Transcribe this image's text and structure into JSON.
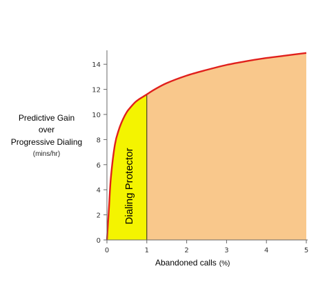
{
  "chart_data": {
    "type": "area",
    "title": "",
    "ylabel": {
      "line1": "Predictive Gain",
      "line2": "over",
      "line3": "Progressive Dialing",
      "units": "(mins/hr)"
    },
    "xlabel": "Abandoned calls",
    "xlabel_units": "(%)",
    "xlim": [
      0,
      5
    ],
    "ylim": [
      0,
      15
    ],
    "xticks": [
      0,
      1,
      2,
      3,
      4,
      5
    ],
    "yticks": [
      0,
      2,
      4,
      6,
      8,
      10,
      12,
      14
    ],
    "grid": false,
    "curve": {
      "x": [
        0,
        0.05,
        0.1,
        0.2,
        0.3,
        0.4,
        0.5,
        0.6,
        0.7,
        0.8,
        0.9,
        1.0,
        1.2,
        1.5,
        2.0,
        2.5,
        3.0,
        3.5,
        4.0,
        4.5,
        5.0
      ],
      "y": [
        0,
        2.5,
        5.0,
        7.6,
        8.8,
        9.6,
        10.2,
        10.6,
        10.95,
        11.2,
        11.4,
        11.6,
        12.0,
        12.5,
        13.1,
        13.55,
        13.95,
        14.25,
        14.5,
        14.7,
        14.9
      ]
    },
    "regions": [
      {
        "label": "Dialing Protector",
        "x_from": 0,
        "x_to": 1,
        "color": "#f4f400"
      },
      {
        "label": "",
        "x_from": 1,
        "x_to": 5,
        "color": "#f9c88c"
      }
    ],
    "line_color": "#e0201c"
  }
}
